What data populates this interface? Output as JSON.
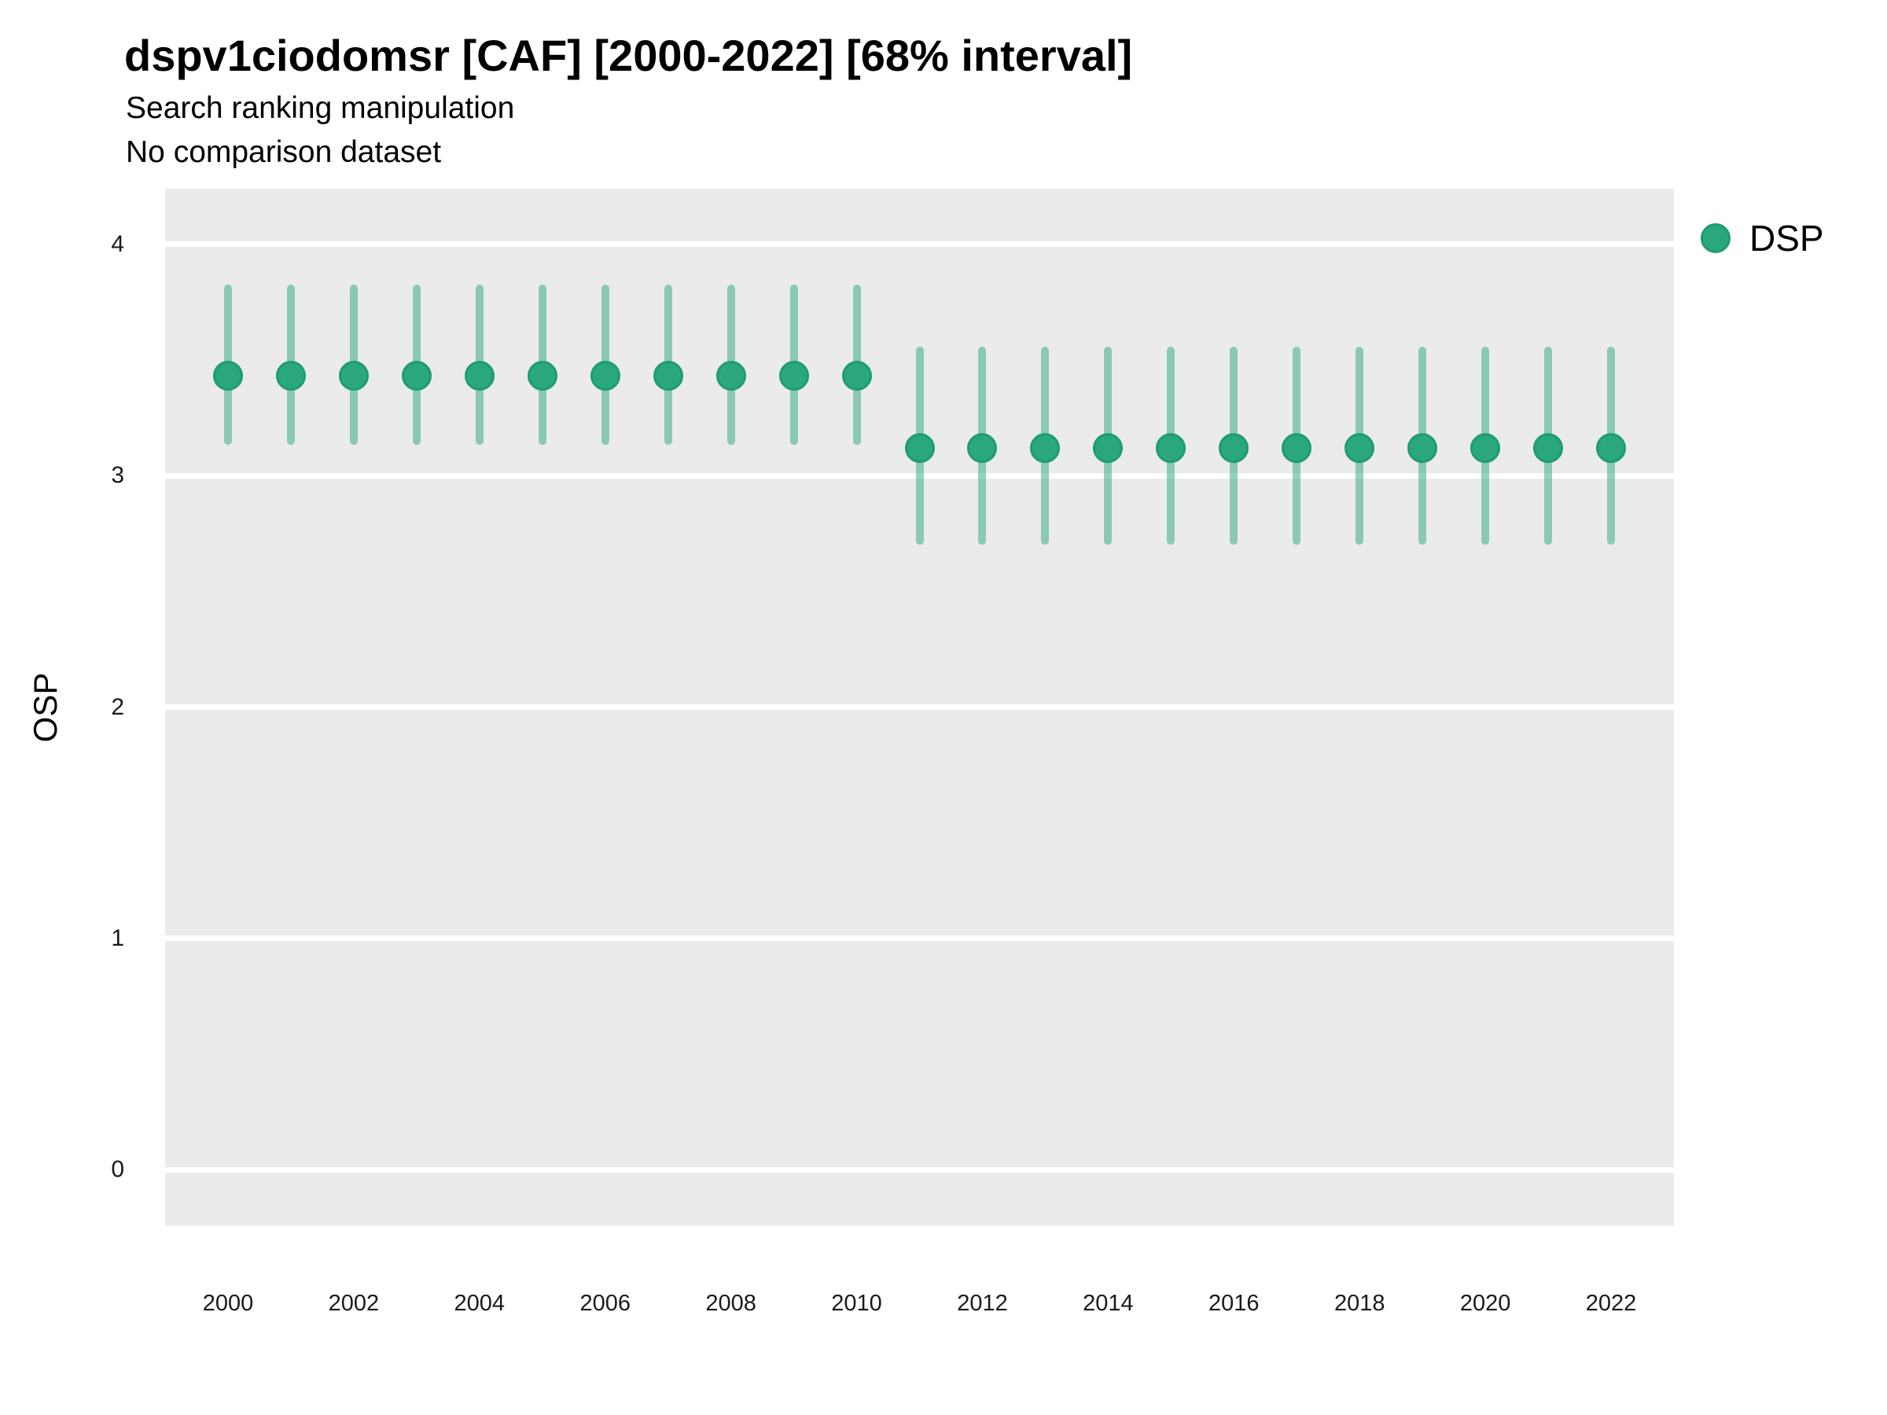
{
  "header": {
    "title": "dspv1ciodomsr [CAF] [2000-2022] [68% interval]",
    "subtitle": "Search ranking manipulation",
    "subtitle2": "No comparison dataset"
  },
  "legend": {
    "position": "right-top",
    "items": [
      {
        "label": "DSP",
        "color": "#2AA87C"
      }
    ]
  },
  "chart_data": {
    "type": "scatter",
    "variant": "pointrange",
    "title": "dspv1ciodomsr [CAF] [2000-2022] [68% interval]",
    "subtitle": "Search ranking manipulation",
    "subtitle2": "No comparison dataset",
    "interval_level": "68%",
    "xlabel": "",
    "ylabel": "OSP",
    "xlim": [
      1999,
      2023
    ],
    "ylim": [
      -0.24,
      4.24
    ],
    "x_ticks": [
      2000,
      2002,
      2004,
      2006,
      2008,
      2010,
      2012,
      2014,
      2016,
      2018,
      2020,
      2022
    ],
    "y_ticks": [
      0,
      1,
      2,
      3,
      4
    ],
    "grid": "horizontal-major-white",
    "panel_bg": "#EBEBEB",
    "colors": {
      "point_fill": "#2AA87C",
      "point_stroke": "#1E9C70",
      "interval_line": "rgba(42,168,124,0.5)",
      "gridline": "#FFFFFF"
    },
    "series": [
      {
        "name": "DSP",
        "points": [
          {
            "x": 2000,
            "y": 3.43,
            "lo": 3.15,
            "hi": 3.81
          },
          {
            "x": 2001,
            "y": 3.43,
            "lo": 3.15,
            "hi": 3.81
          },
          {
            "x": 2002,
            "y": 3.43,
            "lo": 3.15,
            "hi": 3.81
          },
          {
            "x": 2003,
            "y": 3.43,
            "lo": 3.15,
            "hi": 3.81
          },
          {
            "x": 2004,
            "y": 3.43,
            "lo": 3.15,
            "hi": 3.81
          },
          {
            "x": 2005,
            "y": 3.43,
            "lo": 3.15,
            "hi": 3.81
          },
          {
            "x": 2006,
            "y": 3.43,
            "lo": 3.15,
            "hi": 3.81
          },
          {
            "x": 2007,
            "y": 3.43,
            "lo": 3.15,
            "hi": 3.81
          },
          {
            "x": 2008,
            "y": 3.43,
            "lo": 3.15,
            "hi": 3.81
          },
          {
            "x": 2009,
            "y": 3.43,
            "lo": 3.15,
            "hi": 3.81
          },
          {
            "x": 2010,
            "y": 3.43,
            "lo": 3.15,
            "hi": 3.81
          },
          {
            "x": 2011,
            "y": 3.12,
            "lo": 2.72,
            "hi": 3.54
          },
          {
            "x": 2012,
            "y": 3.12,
            "lo": 2.72,
            "hi": 3.54
          },
          {
            "x": 2013,
            "y": 3.12,
            "lo": 2.72,
            "hi": 3.54
          },
          {
            "x": 2014,
            "y": 3.12,
            "lo": 2.72,
            "hi": 3.54
          },
          {
            "x": 2015,
            "y": 3.12,
            "lo": 2.72,
            "hi": 3.54
          },
          {
            "x": 2016,
            "y": 3.12,
            "lo": 2.72,
            "hi": 3.54
          },
          {
            "x": 2017,
            "y": 3.12,
            "lo": 2.72,
            "hi": 3.54
          },
          {
            "x": 2018,
            "y": 3.12,
            "lo": 2.72,
            "hi": 3.54
          },
          {
            "x": 2019,
            "y": 3.12,
            "lo": 2.72,
            "hi": 3.54
          },
          {
            "x": 2020,
            "y": 3.12,
            "lo": 2.72,
            "hi": 3.54
          },
          {
            "x": 2021,
            "y": 3.12,
            "lo": 2.72,
            "hi": 3.54
          },
          {
            "x": 2022,
            "y": 3.12,
            "lo": 2.72,
            "hi": 3.54
          }
        ]
      }
    ]
  }
}
